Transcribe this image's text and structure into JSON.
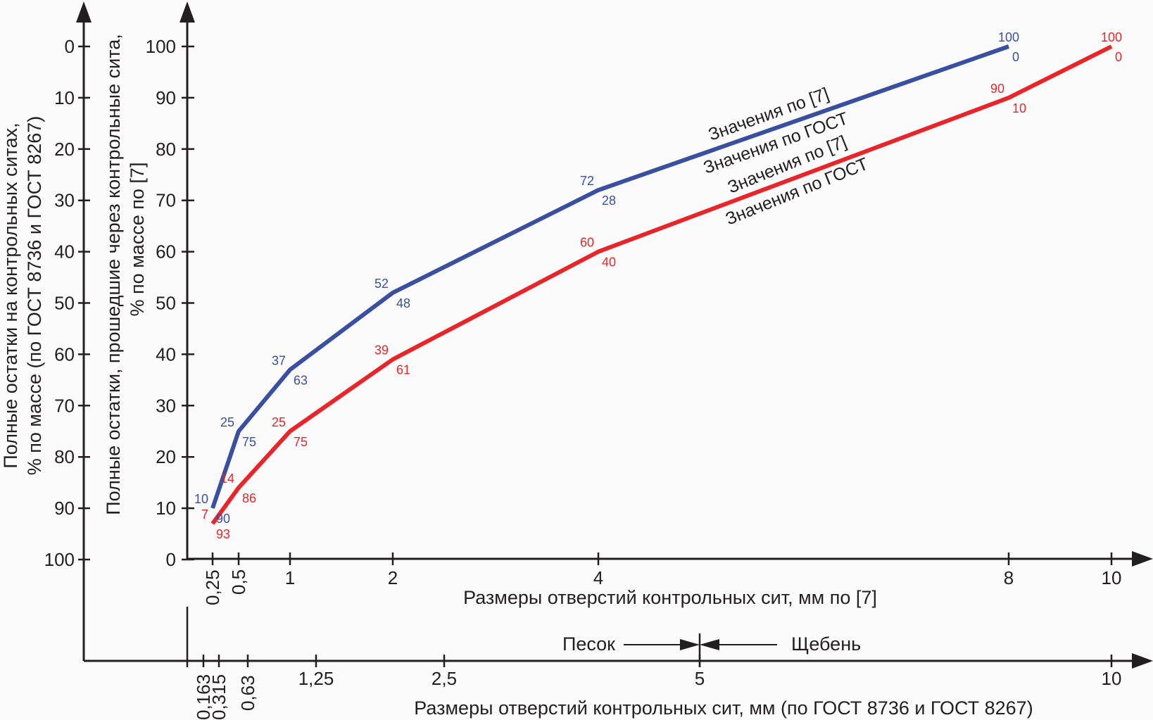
{
  "chart_data": {
    "type": "line",
    "title": "",
    "xlabel": "Размеры отверстий контрольных сит, мм по [7]",
    "xlabel_secondary": "Размеры отверстий контрольных сит, мм (по ГОСТ 8736 и ГОСТ 8267)",
    "ylabel": "Полные остатки, прошедшие через контрольные сита, % по массе по [7]",
    "ylabel_secondary": "Полные остатки на контрольных ситах, % по массе (по ГОСТ 8736 и ГОСТ 8267)",
    "ylim": [
      0,
      100
    ],
    "xlim": [
      0,
      10
    ],
    "grid": false,
    "x_ticks": [
      {
        "value": 0.25,
        "label": "0,25"
      },
      {
        "value": 0.5,
        "label": "0,5"
      },
      {
        "value": 1,
        "label": "1"
      },
      {
        "value": 2,
        "label": "2"
      },
      {
        "value": 4,
        "label": "4"
      },
      {
        "value": 8,
        "label": "8"
      },
      {
        "value": 10,
        "label": "10"
      }
    ],
    "x_ticks_secondary": [
      {
        "value": 0.163,
        "label": "0,163"
      },
      {
        "value": 0.315,
        "label": "0,315"
      },
      {
        "value": 0.63,
        "label": "0,63"
      },
      {
        "value": 1.25,
        "label": "1,25"
      },
      {
        "value": 2.5,
        "label": "2,5"
      },
      {
        "value": 5,
        "label": "5"
      },
      {
        "value": 10,
        "label": "10"
      }
    ],
    "y_ticks": [
      "0",
      "10",
      "20",
      "30",
      "40",
      "50",
      "60",
      "70",
      "80",
      "90",
      "100"
    ],
    "y_ticks_secondary": [
      "100",
      "90",
      "80",
      "70",
      "60",
      "50",
      "40",
      "30",
      "20",
      "10",
      "0"
    ],
    "series": [
      {
        "name": "Значения по [7] / Значения по ГОСТ (upper)",
        "color": "#3a4fa0",
        "x": [
          0.25,
          0.5,
          1,
          2,
          4,
          8
        ],
        "values": [
          10,
          25,
          37,
          52,
          72,
          100
        ],
        "retained": [
          90,
          75,
          63,
          48,
          28,
          0
        ]
      },
      {
        "name": "Значения по [7] / Значения по ГОСТ (lower)",
        "color": "#e8262a",
        "x": [
          0.25,
          0.5,
          1,
          2,
          4,
          8,
          10
        ],
        "values": [
          7,
          14,
          25,
          39,
          60,
          90,
          100
        ],
        "retained": [
          93,
          86,
          75,
          61,
          40,
          10,
          0
        ]
      }
    ],
    "annotations": {
      "series_labels": [
        "Значения по [7]",
        "Значения по ГОСТ",
        "Значения по [7]",
        "Значения по ГОСТ"
      ],
      "sand": "Песок",
      "gravel": "Щебень",
      "boundary_value": "5"
    }
  }
}
